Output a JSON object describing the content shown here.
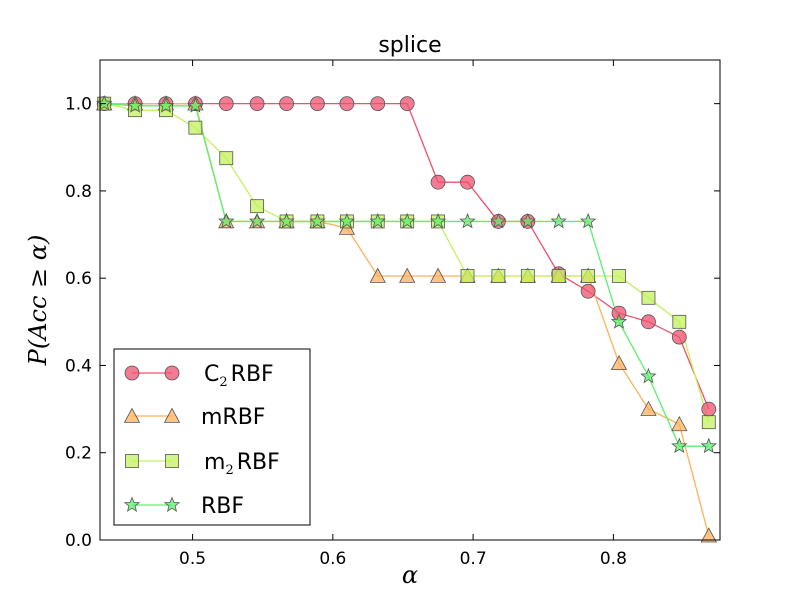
{
  "chart_data": {
    "type": "line",
    "title": "splice",
    "xlabel": "α",
    "ylabel": "P(Acc ≥ α)",
    "xlim": [
      0.434,
      0.876
    ],
    "ylim": [
      0.0,
      1.1
    ],
    "xticks": [
      "0.5",
      "0.6",
      "0.7",
      "0.8"
    ],
    "xtick_values": [
      0.5,
      0.6,
      0.7,
      0.8
    ],
    "yticks": [
      "0.0",
      "0.2",
      "0.4",
      "0.6",
      "0.8",
      "1.0"
    ],
    "ytick_values": [
      0.0,
      0.2,
      0.4,
      0.6,
      0.8,
      1.0
    ],
    "legend_position": "bottom-left",
    "series": [
      {
        "name": "C2RBF",
        "label_main": "C",
        "label_sub": "2",
        "label_rest": "RBF",
        "marker": "circle",
        "color": "#f0506e",
        "fill": "#f0506e",
        "x": [
          0.437,
          0.459,
          0.481,
          0.502,
          0.524,
          0.546,
          0.567,
          0.589,
          0.61,
          0.632,
          0.653,
          0.675,
          0.696,
          0.718,
          0.739,
          0.761,
          0.782,
          0.804,
          0.825,
          0.847,
          0.868
        ],
        "y": [
          1.0,
          1.0,
          1.0,
          1.0,
          1.0,
          1.0,
          1.0,
          1.0,
          1.0,
          1.0,
          1.0,
          0.82,
          0.82,
          0.73,
          0.73,
          0.61,
          0.57,
          0.52,
          0.5,
          0.465,
          0.3
        ]
      },
      {
        "name": "mRBF",
        "label_main": "mRBF",
        "label_sub": "",
        "label_rest": "",
        "marker": "triangle",
        "color": "#fdb15d",
        "fill": "#fdb15d",
        "x": [
          0.437,
          0.459,
          0.481,
          0.502,
          0.524,
          0.546,
          0.567,
          0.589,
          0.61,
          0.632,
          0.653,
          0.675,
          0.696,
          0.718,
          0.739,
          0.761,
          0.782,
          0.804,
          0.825,
          0.847,
          0.868
        ],
        "y": [
          1.0,
          1.0,
          1.0,
          1.0,
          0.73,
          0.73,
          0.73,
          0.73,
          0.715,
          0.605,
          0.605,
          0.605,
          0.605,
          0.605,
          0.605,
          0.605,
          0.605,
          0.405,
          0.3,
          0.265,
          0.01
        ]
      },
      {
        "name": "m2RBF",
        "label_main": "m",
        "label_sub": "2",
        "label_rest": "RBF",
        "marker": "square",
        "color": "#c4f25c",
        "fill": "#c4f25c",
        "x": [
          0.437,
          0.459,
          0.481,
          0.502,
          0.524,
          0.546,
          0.567,
          0.589,
          0.61,
          0.632,
          0.653,
          0.675,
          0.696,
          0.718,
          0.739,
          0.761,
          0.782,
          0.804,
          0.825,
          0.847,
          0.868
        ],
        "y": [
          1.0,
          0.985,
          0.985,
          0.945,
          0.875,
          0.765,
          0.73,
          0.73,
          0.73,
          0.73,
          0.73,
          0.73,
          0.605,
          0.605,
          0.605,
          0.605,
          0.605,
          0.605,
          0.555,
          0.5,
          0.27
        ]
      },
      {
        "name": "RBF",
        "label_main": "RBF",
        "label_sub": "",
        "label_rest": "",
        "marker": "star",
        "color": "#5cf06e",
        "fill": "#5cf06e",
        "x": [
          0.437,
          0.459,
          0.481,
          0.502,
          0.524,
          0.546,
          0.567,
          0.589,
          0.61,
          0.632,
          0.653,
          0.675,
          0.696,
          0.718,
          0.739,
          0.761,
          0.782,
          0.804,
          0.825,
          0.847,
          0.868
        ],
        "y": [
          1.0,
          0.995,
          0.995,
          0.995,
          0.73,
          0.73,
          0.73,
          0.73,
          0.73,
          0.73,
          0.73,
          0.73,
          0.73,
          0.73,
          0.73,
          0.73,
          0.73,
          0.5,
          0.375,
          0.215,
          0.215
        ]
      }
    ]
  }
}
